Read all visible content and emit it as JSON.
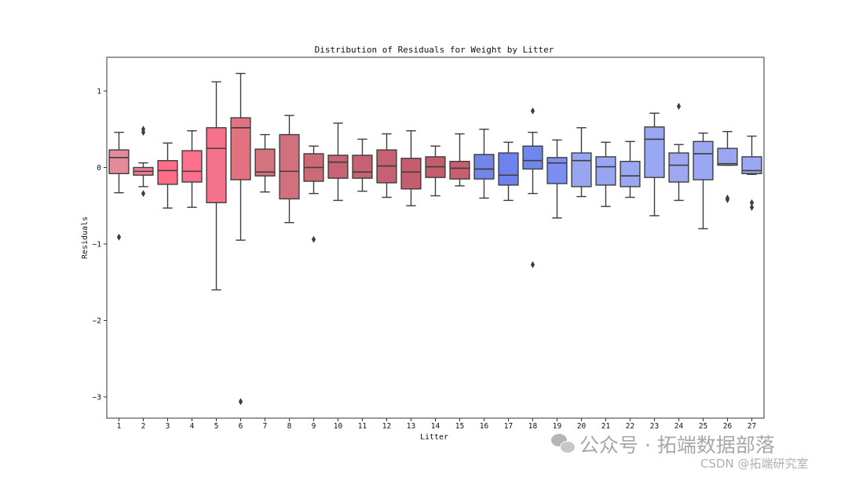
{
  "chart_data": {
    "type": "box",
    "title": "Distribution of Residuals for Weight by Litter",
    "xlabel": "Litter",
    "ylabel": "Residuals",
    "ylim": [
      -3.25,
      1.45
    ],
    "yticks": [
      1,
      0,
      -1,
      -2,
      -3
    ],
    "ytick_labels": [
      "1",
      "0",
      "−1",
      "−2",
      "−3"
    ],
    "grid": false,
    "categories": [
      "1",
      "2",
      "3",
      "4",
      "5",
      "6",
      "7",
      "8",
      "9",
      "10",
      "11",
      "12",
      "13",
      "14",
      "15",
      "16",
      "17",
      "18",
      "19",
      "20",
      "21",
      "22",
      "23",
      "24",
      "25",
      "26",
      "27"
    ],
    "boxes": [
      {
        "whislo": -0.33,
        "q1": -0.08,
        "med": 0.13,
        "q3": 0.23,
        "whishi": 0.46,
        "fliers": [
          -0.91
        ],
        "color": "#e48a9b"
      },
      {
        "whislo": -0.25,
        "q1": -0.1,
        "med": -0.05,
        "q3": 0.0,
        "whishi": 0.06,
        "fliers": [
          0.5,
          0.46,
          -0.34
        ],
        "color": "#f07d93"
      },
      {
        "whislo": -0.53,
        "q1": -0.22,
        "med": -0.04,
        "q3": 0.09,
        "whishi": 0.32,
        "fliers": [],
        "color": "#fb6e86"
      },
      {
        "whislo": -0.52,
        "q1": -0.19,
        "med": -0.05,
        "q3": 0.22,
        "whishi": 0.48,
        "fliers": [],
        "color": "#ff6f89"
      },
      {
        "whislo": -1.6,
        "q1": -0.46,
        "med": 0.25,
        "q3": 0.52,
        "whishi": 1.12,
        "fliers": [],
        "color": "#f2738a"
      },
      {
        "whislo": -0.95,
        "q1": -0.16,
        "med": 0.52,
        "q3": 0.65,
        "whishi": 1.23,
        "fliers": [
          -3.06
        ],
        "color": "#e2727f"
      },
      {
        "whislo": -0.32,
        "q1": -0.11,
        "med": -0.06,
        "q3": 0.24,
        "whishi": 0.43,
        "fliers": [],
        "color": "#d4727e"
      },
      {
        "whislo": -0.72,
        "q1": -0.41,
        "med": -0.05,
        "q3": 0.43,
        "whishi": 0.68,
        "fliers": [],
        "color": "#d2717d"
      },
      {
        "whislo": -0.34,
        "q1": -0.18,
        "med": 0.0,
        "q3": 0.18,
        "whishi": 0.28,
        "fliers": [
          -0.94
        ],
        "color": "#cc6a78"
      },
      {
        "whislo": -0.43,
        "q1": -0.14,
        "med": 0.07,
        "q3": 0.16,
        "whishi": 0.58,
        "fliers": [],
        "color": "#c96272"
      },
      {
        "whislo": -0.31,
        "q1": -0.14,
        "med": -0.06,
        "q3": 0.16,
        "whishi": 0.37,
        "fliers": [],
        "color": "#c76271"
      },
      {
        "whislo": -0.39,
        "q1": -0.2,
        "med": 0.02,
        "q3": 0.23,
        "whishi": 0.44,
        "fliers": [],
        "color": "#c66171"
      },
      {
        "whislo": -0.5,
        "q1": -0.28,
        "med": -0.06,
        "q3": 0.12,
        "whishi": 0.48,
        "fliers": [],
        "color": "#c45e6e"
      },
      {
        "whislo": -0.37,
        "q1": -0.13,
        "med": 0.01,
        "q3": 0.14,
        "whishi": 0.28,
        "fliers": [],
        "color": "#c45e6e"
      },
      {
        "whislo": -0.24,
        "q1": -0.15,
        "med": -0.01,
        "q3": 0.08,
        "whishi": 0.44,
        "fliers": [],
        "color": "#c85e6f"
      },
      {
        "whislo": -0.4,
        "q1": -0.15,
        "med": -0.02,
        "q3": 0.17,
        "whishi": 0.5,
        "fliers": [],
        "color": "#7285e8"
      },
      {
        "whislo": -0.43,
        "q1": -0.23,
        "med": -0.1,
        "q3": 0.19,
        "whishi": 0.33,
        "fliers": [],
        "color": "#6f82ec"
      },
      {
        "whislo": -0.34,
        "q1": -0.02,
        "med": 0.09,
        "q3": 0.28,
        "whishi": 0.46,
        "fliers": [
          0.74,
          -1.27
        ],
        "color": "#6e86ee"
      },
      {
        "whislo": -0.66,
        "q1": -0.21,
        "med": 0.06,
        "q3": 0.13,
        "whishi": 0.36,
        "fliers": [],
        "color": "#7c8ff0"
      },
      {
        "whislo": -0.38,
        "q1": -0.25,
        "med": 0.09,
        "q3": 0.19,
        "whishi": 0.52,
        "fliers": [],
        "color": "#98a5f1"
      },
      {
        "whislo": -0.51,
        "q1": -0.23,
        "med": 0.01,
        "q3": 0.14,
        "whishi": 0.33,
        "fliers": [],
        "color": "#98a5f1"
      },
      {
        "whislo": -0.39,
        "q1": -0.25,
        "med": -0.11,
        "q3": 0.08,
        "whishi": 0.34,
        "fliers": [],
        "color": "#9aa7f1"
      },
      {
        "whislo": -0.63,
        "q1": -0.13,
        "med": 0.37,
        "q3": 0.53,
        "whishi": 0.71,
        "fliers": [],
        "color": "#9aa7f1"
      },
      {
        "whislo": -0.43,
        "q1": -0.19,
        "med": 0.03,
        "q3": 0.19,
        "whishi": 0.3,
        "fliers": [
          0.8
        ],
        "color": "#9da8f1"
      },
      {
        "whislo": -0.8,
        "q1": -0.16,
        "med": 0.18,
        "q3": 0.34,
        "whishi": 0.45,
        "fliers": [],
        "color": "#9ba7f2"
      },
      {
        "whislo": 0.03,
        "q1": 0.03,
        "med": 0.05,
        "q3": 0.25,
        "whishi": 0.47,
        "fliers": [
          -0.4,
          -0.42
        ],
        "color": "#9aa6f0"
      },
      {
        "whislo": -0.09,
        "q1": -0.08,
        "med": -0.04,
        "q3": 0.14,
        "whishi": 0.41,
        "fliers": [
          -0.46,
          -0.52
        ],
        "color": "#9ca7f1"
      }
    ]
  },
  "watermark": {
    "icon": "wechat-icon",
    "main": "公众号 · 拓端数据部落",
    "sub": "CSDN @拓端研究室"
  }
}
